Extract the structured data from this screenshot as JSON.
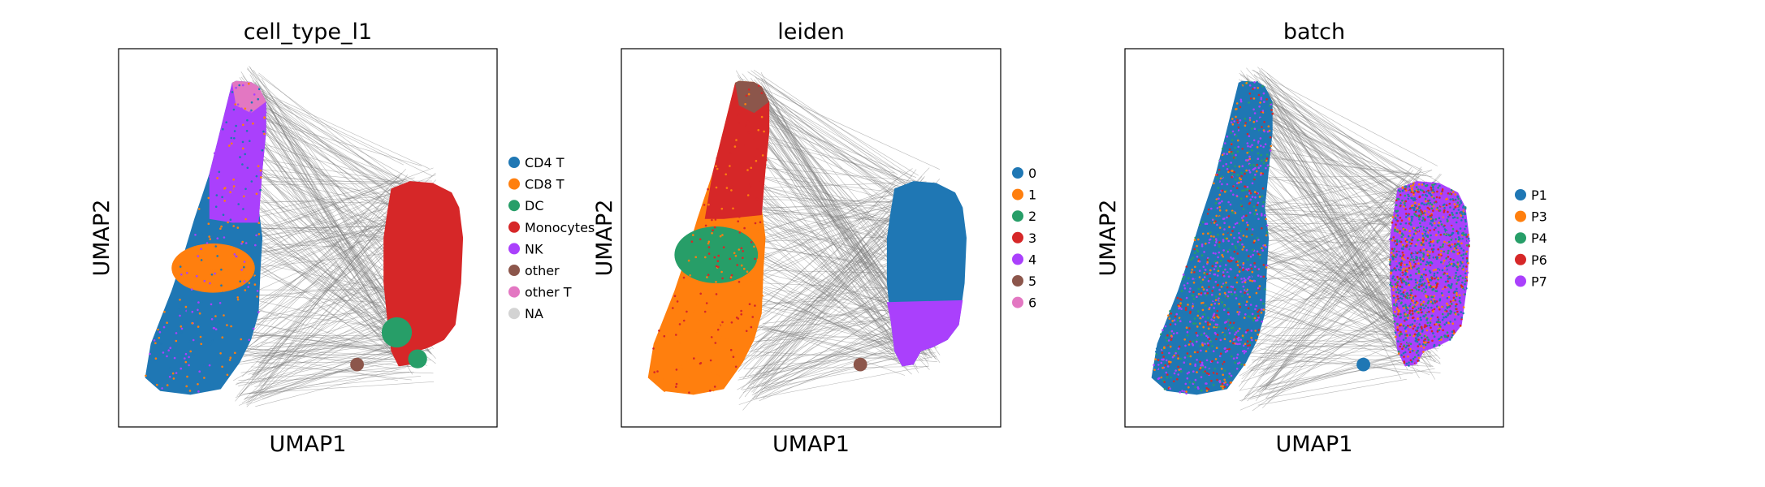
{
  "figure": {
    "colors": {
      "connectivity_edges": "#808080",
      "frame": "#000000"
    }
  },
  "chart_data": [
    {
      "type": "scatter",
      "title": "cell_type_l1",
      "xlabel": "UMAP1",
      "ylabel": "UMAP2",
      "xticks": [],
      "yticks": [],
      "grid": false,
      "legend_position": "right",
      "legend": [
        {
          "label": "CD4 T",
          "color": "#1f77b4"
        },
        {
          "label": "CD8 T",
          "color": "#ff7f0e"
        },
        {
          "label": "DC",
          "color": "#279e68"
        },
        {
          "label": "Monocytes",
          "color": "#d62728"
        },
        {
          "label": "NK",
          "color": "#aa40fc"
        },
        {
          "label": "other",
          "color": "#8c564b"
        },
        {
          "label": "other T",
          "color": "#e377c2"
        },
        {
          "label": "NA",
          "color": "#d3d3d3"
        }
      ]
    },
    {
      "type": "scatter",
      "title": "leiden",
      "xlabel": "UMAP1",
      "ylabel": "UMAP2",
      "xticks": [],
      "yticks": [],
      "grid": false,
      "legend_position": "right",
      "legend": [
        {
          "label": "0",
          "color": "#1f77b4"
        },
        {
          "label": "1",
          "color": "#ff7f0e"
        },
        {
          "label": "2",
          "color": "#279e68"
        },
        {
          "label": "3",
          "color": "#d62728"
        },
        {
          "label": "4",
          "color": "#aa40fc"
        },
        {
          "label": "5",
          "color": "#8c564b"
        },
        {
          "label": "6",
          "color": "#e377c2"
        }
      ]
    },
    {
      "type": "scatter",
      "title": "batch",
      "xlabel": "UMAP1",
      "ylabel": "UMAP2",
      "xticks": [],
      "yticks": [],
      "grid": false,
      "legend_position": "right",
      "legend": [
        {
          "label": "P1",
          "color": "#1f77b4"
        },
        {
          "label": "P3",
          "color": "#ff7f0e"
        },
        {
          "label": "P4",
          "color": "#279e68"
        },
        {
          "label": "P6",
          "color": "#d62728"
        },
        {
          "label": "P7",
          "color": "#aa40fc"
        }
      ]
    }
  ]
}
